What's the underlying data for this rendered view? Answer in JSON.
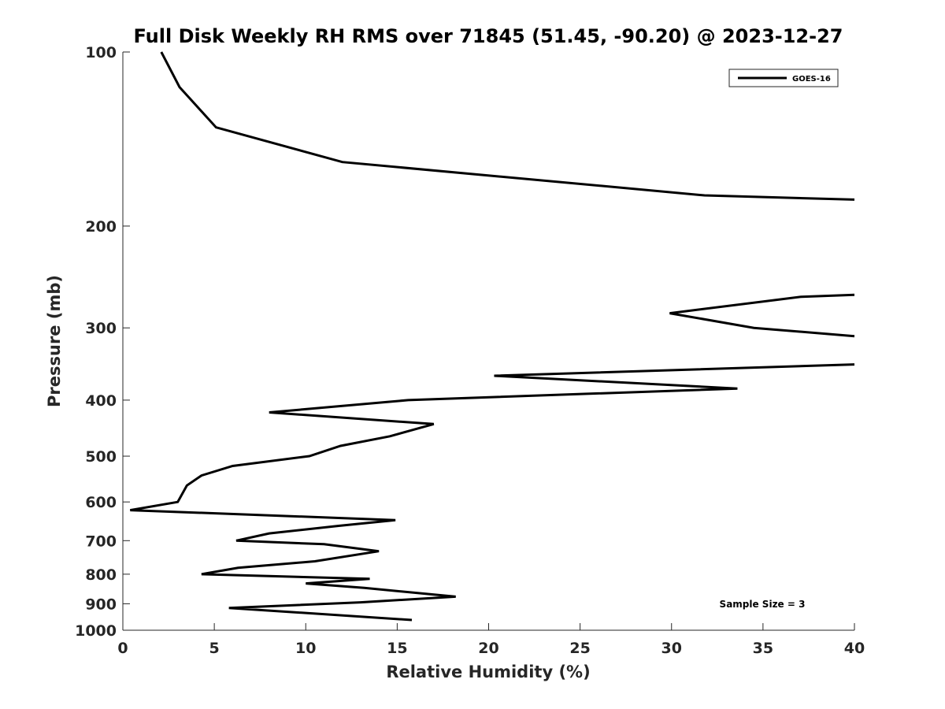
{
  "chart_data": {
    "type": "line",
    "title": "Full Disk Weekly RH RMS over 71845 (51.45, -90.20) @ 2023-12-27",
    "xlabel": "Relative Humidity (%)",
    "ylabel": "Pressure (mb)",
    "xlim": [
      0,
      40
    ],
    "ylim": [
      100,
      1000
    ],
    "yscale": "log",
    "y_reversed": true,
    "grid": false,
    "legend_position": "top-right",
    "xticks": [
      0,
      5,
      10,
      15,
      20,
      25,
      30,
      35,
      40
    ],
    "yticks": [
      100,
      200,
      300,
      400,
      500,
      600,
      700,
      800,
      900,
      1000
    ],
    "annotation": "Sample Size = 3",
    "series": [
      {
        "name": "GOES-16",
        "color": "#000000",
        "points": [
          [
            2.1,
            100
          ],
          [
            3.1,
            115
          ],
          [
            5.1,
            135
          ],
          [
            12.0,
            155
          ],
          [
            31.8,
            177
          ],
          [
            40.0,
            180
          ],
          [
            null,
            263
          ],
          [
            40.0,
            263
          ],
          [
            37.1,
            265
          ],
          [
            29.9,
            283
          ],
          [
            34.5,
            300
          ],
          [
            40.0,
            310
          ],
          [
            null,
            347
          ],
          [
            40.0,
            347
          ],
          [
            20.3,
            363
          ],
          [
            33.6,
            382
          ],
          [
            15.6,
            400
          ],
          [
            8.0,
            420
          ],
          [
            17.0,
            440
          ],
          [
            14.6,
            462
          ],
          [
            11.9,
            480
          ],
          [
            10.2,
            500
          ],
          [
            6.0,
            520
          ],
          [
            4.3,
            540
          ],
          [
            3.5,
            562
          ],
          [
            3.0,
            600
          ],
          [
            0.4,
            620
          ],
          [
            14.9,
            645
          ],
          [
            11.8,
            660
          ],
          [
            8.0,
            680
          ],
          [
            6.2,
            700
          ],
          [
            11.0,
            710
          ],
          [
            14.0,
            730
          ],
          [
            10.5,
            760
          ],
          [
            6.3,
            780
          ],
          [
            4.3,
            800
          ],
          [
            13.5,
            815
          ],
          [
            10.0,
            830
          ],
          [
            13.2,
            845
          ],
          [
            18.2,
            875
          ],
          [
            13.0,
            895
          ],
          [
            5.8,
            915
          ],
          [
            15.8,
            960
          ]
        ]
      }
    ]
  }
}
